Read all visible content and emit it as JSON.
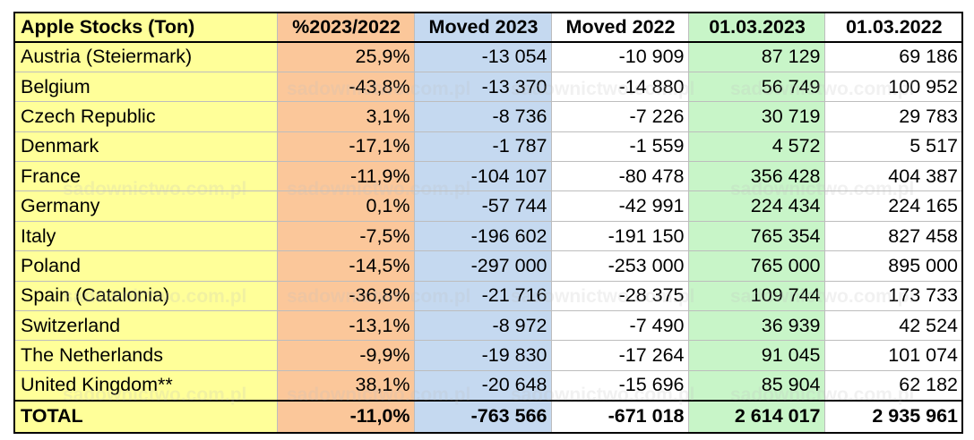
{
  "watermark": "sadownictwo.com.pl",
  "table": {
    "headers": [
      "Apple Stocks (Ton)",
      "%2023/2022",
      "Moved 2023",
      "Moved 2022",
      "01.03.2023",
      "01.03.2022"
    ],
    "rows": [
      [
        "Austria (Steiermark)",
        "25,9%",
        "-13 054",
        "-10 909",
        "87 129",
        "69 186"
      ],
      [
        "Belgium",
        "-43,8%",
        "-13 370",
        "-14 880",
        "56 749",
        "100 952"
      ],
      [
        "Czech Republic",
        "3,1%",
        "-8 736",
        "-7 226",
        "30 719",
        "29 783"
      ],
      [
        "Denmark",
        "-17,1%",
        "-1 787",
        "-1 559",
        "4 572",
        "5 517"
      ],
      [
        "France",
        "-11,9%",
        "-104 107",
        "-80 478",
        "356 428",
        "404 387"
      ],
      [
        "Germany",
        "0,1%",
        "-57 744",
        "-42 991",
        "224 434",
        "224 165"
      ],
      [
        "Italy",
        "-7,5%",
        "-196 602",
        "-191 150",
        "765 354",
        "827 458"
      ],
      [
        "Poland",
        "-14,5%",
        "-297 000",
        "-253 000",
        "765 000",
        "895 000"
      ],
      [
        "Spain (Catalonia)",
        "-36,8%",
        "-21 716",
        "-28 375",
        "109 744",
        "173 733"
      ],
      [
        "Switzerland",
        "-13,1%",
        "-8 972",
        "-7 490",
        "36 939",
        "42 524"
      ],
      [
        "The Netherlands",
        "-9,9%",
        "-19 830",
        "-17 264",
        "91 045",
        "101 074"
      ],
      [
        "United Kingdom**",
        "38,1%",
        "-20 648",
        "-15 696",
        "85 904",
        "62 182"
      ]
    ],
    "total": [
      "TOTAL",
      "-11,0%",
      "-763 566",
      "-671 018",
      "2 614 017",
      "2 935 961"
    ]
  }
}
